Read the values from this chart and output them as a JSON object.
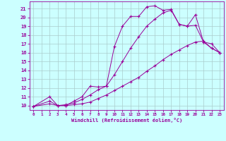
{
  "xlabel": "Windchill (Refroidissement éolien,°C)",
  "bg_color": "#ccffff",
  "line_color": "#990099",
  "grid_color": "#aacccc",
  "xlim": [
    -0.5,
    23.5
  ],
  "ylim": [
    9.5,
    21.8
  ],
  "xticks": [
    0,
    1,
    2,
    3,
    4,
    5,
    6,
    7,
    8,
    9,
    10,
    11,
    12,
    13,
    14,
    15,
    16,
    17,
    18,
    19,
    20,
    21,
    22,
    23
  ],
  "yticks": [
    10,
    11,
    12,
    13,
    14,
    15,
    16,
    17,
    18,
    19,
    20,
    21
  ],
  "curve1_x": [
    0,
    2,
    3,
    4,
    5,
    6,
    7,
    8,
    9,
    10,
    11,
    12,
    13,
    14,
    15,
    16,
    17,
    18,
    19,
    20,
    21,
    22,
    23
  ],
  "curve1_y": [
    9.9,
    11.0,
    10.0,
    10.0,
    10.5,
    11.0,
    12.2,
    12.1,
    12.2,
    16.7,
    19.0,
    20.1,
    20.1,
    21.2,
    21.3,
    20.8,
    20.9,
    19.2,
    19.0,
    20.3,
    17.2,
    17.0,
    16.0
  ],
  "curve2_x": [
    0,
    2,
    3,
    4,
    5,
    6,
    7,
    8,
    9,
    10,
    11,
    12,
    13,
    14,
    15,
    16,
    17,
    18,
    19,
    20,
    21,
    22,
    23
  ],
  "curve2_y": [
    9.9,
    10.5,
    10.0,
    10.1,
    10.3,
    10.7,
    11.2,
    11.8,
    12.2,
    13.5,
    15.0,
    16.5,
    17.8,
    19.0,
    19.8,
    20.5,
    20.8,
    19.2,
    19.0,
    19.1,
    17.2,
    16.5,
    16.0
  ],
  "curve3_x": [
    0,
    2,
    3,
    4,
    5,
    6,
    7,
    8,
    9,
    10,
    11,
    12,
    13,
    14,
    15,
    16,
    17,
    18,
    19,
    20,
    21,
    22,
    23
  ],
  "curve3_y": [
    9.9,
    10.2,
    10.0,
    10.0,
    10.1,
    10.2,
    10.4,
    10.8,
    11.2,
    11.7,
    12.2,
    12.7,
    13.2,
    13.9,
    14.5,
    15.2,
    15.8,
    16.3,
    16.8,
    17.2,
    17.3,
    16.5,
    16.0
  ]
}
